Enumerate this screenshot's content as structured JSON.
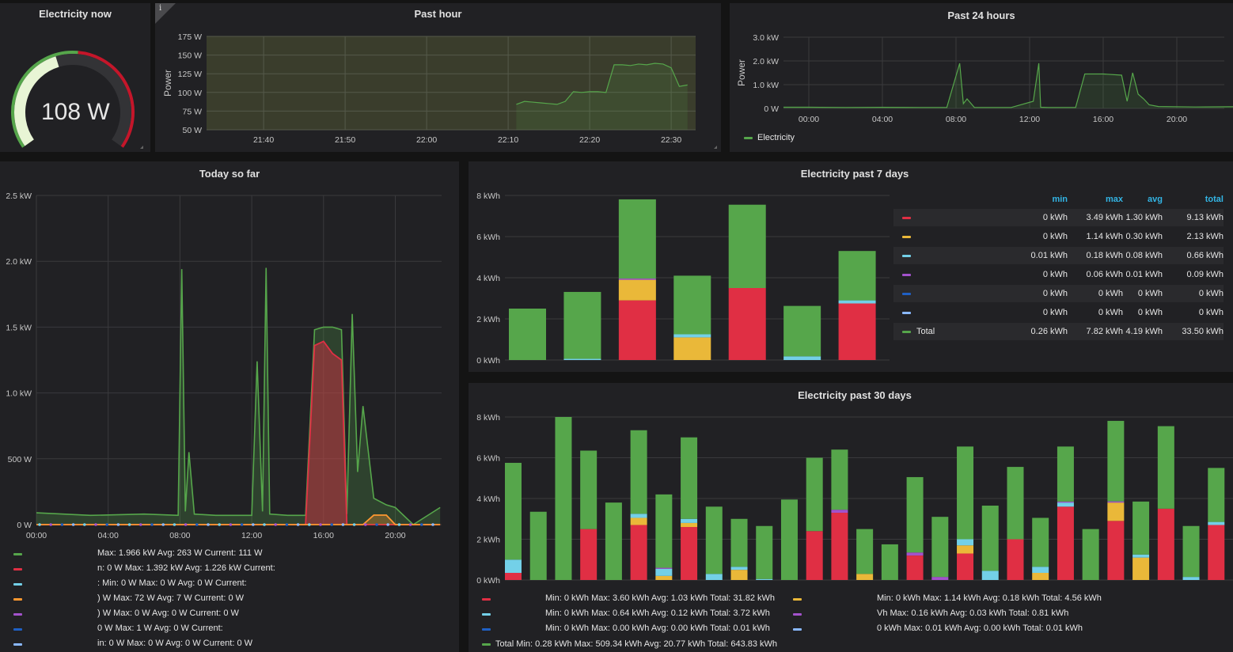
{
  "colors": {
    "green": "#56a64b",
    "red": "#e02f44",
    "cyan": "#73d0e8",
    "orange": "#ff9830",
    "yellow": "#eab839",
    "purple": "#a352cc",
    "blue": "#1f60c4",
    "lightblue": "#8ab8ff",
    "grid": "#3a3a3d",
    "text": "#d8d9da"
  },
  "gauge": {
    "title": "Electricity now",
    "value_text": "108 W",
    "value": 108,
    "max": 250
  },
  "past_hour": {
    "title": "Past hour",
    "info_icon": "i",
    "ylabel": "Power",
    "y_ticks": [
      "175 W",
      "150 W",
      "125 W",
      "100 W",
      "75 W",
      "50 W"
    ],
    "x_ticks": [
      "21:40",
      "21:50",
      "22:00",
      "22:10",
      "22:20",
      "22:30"
    ],
    "chart_data": {
      "type": "line",
      "ylabel": "Power",
      "ylim": [
        50,
        175
      ],
      "unit": "W",
      "x": [
        "22:11",
        "22:12",
        "22:13",
        "22:14",
        "22:15",
        "22:16",
        "22:17",
        "22:18",
        "22:19",
        "22:20",
        "22:21",
        "22:22",
        "22:23",
        "22:24",
        "22:25",
        "22:26",
        "22:27",
        "22:28",
        "22:29",
        "22:30",
        "22:31",
        "22:32"
      ],
      "series": [
        {
          "values": [
            84,
            88,
            87,
            86,
            85,
            84,
            88,
            101,
            100,
            101,
            101,
            100,
            137,
            137,
            136,
            138,
            137,
            139,
            138,
            133,
            108,
            110
          ]
        }
      ]
    }
  },
  "past_24h": {
    "title": "Past 24 hours",
    "ylabel": "Power",
    "y_ticks": [
      "3.0 kW",
      "2.0 kW",
      "1.0 kW",
      "0 W"
    ],
    "x_ticks": [
      "00:00",
      "04:00",
      "08:00",
      "12:00",
      "16:00",
      "20:00"
    ],
    "legend": [
      {
        "label": "Electricity",
        "color": "#56a64b"
      }
    ],
    "chart_data": {
      "type": "line",
      "ylim": [
        0,
        3000
      ],
      "unit": "W",
      "x": [
        0,
        2,
        4,
        6,
        7.5,
        8.2,
        8.4,
        8.6,
        9,
        11,
        12.2,
        12.5,
        12.6,
        13,
        14.5,
        15,
        16,
        17,
        17.3,
        17.6,
        17.9,
        18.2,
        18.5,
        19,
        21,
        23,
        23.5
      ],
      "series": [
        {
          "name": "Electricity",
          "values": [
            50,
            40,
            45,
            40,
            40,
            1900,
            200,
            400,
            40,
            40,
            300,
            1900,
            50,
            40,
            40,
            1450,
            1450,
            1400,
            300,
            1500,
            600,
            400,
            150,
            80,
            60,
            70,
            80
          ]
        }
      ]
    }
  },
  "today": {
    "title": "Today so far",
    "y_ticks": [
      "2.5 kW",
      "2.0 kW",
      "1.5 kW",
      "1.0 kW",
      "500 W",
      "0 W"
    ],
    "x_ticks": [
      "00:00",
      "04:00",
      "08:00",
      "12:00",
      "16:00",
      "20:00"
    ],
    "legend": [
      {
        "color": "#56a64b",
        "text": "Max: 1.966 kW  Avg: 263 W  Current: 111 W"
      },
      {
        "color": "#e02f44",
        "text": "n: 0 W  Max: 1.392 kW  Avg: 1.226 kW  Current:"
      },
      {
        "color": "#73d0e8",
        "text": ": Min: 0 W  Max: 0 W  Avg: 0 W  Current:"
      },
      {
        "color": "#ff9830",
        "text": ") W  Max: 72 W  Avg: 7 W  Current: 0 W"
      },
      {
        "color": "#a352cc",
        "text": ") W  Max: 0 W  Avg: 0 W  Current: 0 W"
      },
      {
        "color": "#1f60c4",
        "text": "0 W  Max: 1 W  Avg: 0 W  Current:"
      },
      {
        "color": "#8ab8ff",
        "text": "in: 0 W  Max: 0 W  Avg: 0 W  Current: 0 W"
      }
    ],
    "chart_data": {
      "type": "area",
      "ylim": [
        0,
        2500
      ],
      "unit": "W",
      "x": [
        0,
        3,
        6,
        7.9,
        8.1,
        8.3,
        8.5,
        8.8,
        10,
        12,
        12.3,
        12.6,
        12.8,
        13,
        14,
        15,
        15.5,
        16,
        16.5,
        17,
        17.3,
        17.6,
        17.9,
        18.2,
        18.8,
        19.5,
        20,
        21,
        22.5
      ],
      "series": [
        {
          "name": "green",
          "values": [
            90,
            70,
            80,
            70,
            1940,
            100,
            550,
            80,
            70,
            70,
            1240,
            100,
            1950,
            80,
            70,
            70,
            1480,
            1500,
            1500,
            1480,
            80,
            1600,
            400,
            900,
            200,
            150,
            130,
            0,
            130
          ]
        },
        {
          "name": "red",
          "values": [
            0,
            0,
            0,
            0,
            0,
            0,
            0,
            0,
            0,
            0,
            0,
            0,
            0,
            0,
            0,
            0,
            1360,
            1392,
            1300,
            1250,
            0,
            0,
            0,
            0,
            0,
            0,
            0,
            0,
            0
          ]
        },
        {
          "name": "orange",
          "values": [
            0,
            0,
            0,
            0,
            0,
            0,
            0,
            0,
            0,
            0,
            0,
            0,
            0,
            0,
            0,
            0,
            0,
            0,
            0,
            0,
            0,
            0,
            0,
            0,
            72,
            72,
            0,
            0,
            0
          ]
        }
      ]
    }
  },
  "past_7d": {
    "title": "Electricity past 7 days",
    "y_ticks": [
      "8 kWh",
      "6 kWh",
      "4 kWh",
      "2 kWh",
      "0 kWh"
    ],
    "table_headers": [
      "min",
      "max",
      "avg",
      "total"
    ],
    "table": [
      {
        "color": "#e02f44",
        "name": "",
        "min": "0 kWh",
        "max": "3.49 kWh",
        "avg": "1.30 kWh",
        "total": "9.13 kWh"
      },
      {
        "color": "#eab839",
        "name": "",
        "min": "0 kWh",
        "max": "1.14 kWh",
        "avg": "0.30 kWh",
        "total": "2.13 kWh"
      },
      {
        "color": "#73d0e8",
        "name": "",
        "min": "0.01 kWh",
        "max": "0.18 kWh",
        "avg": "0.08 kWh",
        "total": "0.66 kWh"
      },
      {
        "color": "#a352cc",
        "name": "",
        "min": "0 kWh",
        "max": "0.06 kWh",
        "avg": "0.01 kWh",
        "total": "0.09 kWh"
      },
      {
        "color": "#1f60c4",
        "name": "",
        "min": "0 kWh",
        "max": "0 kWh",
        "avg": "0 kWh",
        "total": "0 kWh"
      },
      {
        "color": "#8ab8ff",
        "name": "",
        "min": "0 kWh",
        "max": "0 kWh",
        "avg": "0 kWh",
        "total": "0 kWh"
      },
      {
        "color": "#56a64b",
        "name": "Total",
        "min": "0.26 kWh",
        "max": "7.82 kWh",
        "avg": "4.19 kWh",
        "total": "33.50 kWh"
      }
    ],
    "chart_data": {
      "type": "bar",
      "stacked": true,
      "ylim": [
        0,
        8
      ],
      "unit": "kWh",
      "series": [
        {
          "color": "#e02f44",
          "values": [
            0,
            0,
            2.9,
            0,
            3.5,
            0,
            2.75
          ]
        },
        {
          "color": "#eab839",
          "values": [
            0,
            0,
            1.0,
            1.1,
            0,
            0,
            0
          ]
        },
        {
          "color": "#73d0e8",
          "values": [
            0,
            0.06,
            0,
            0.15,
            0,
            0.18,
            0.15
          ]
        },
        {
          "color": "#a352cc",
          "values": [
            0,
            0,
            0.06,
            0,
            0,
            0,
            0
          ]
        },
        {
          "color": "#56a64b",
          "values": [
            2.5,
            3.25,
            3.85,
            2.85,
            4.05,
            2.45,
            2.4
          ]
        }
      ]
    }
  },
  "past_30d": {
    "title": "Electricity past 30 days",
    "y_ticks": [
      "8 kWh",
      "6 kWh",
      "4 kWh",
      "2 kWh",
      "0 kWh"
    ],
    "legend_rows": [
      [
        {
          "color": "#e02f44",
          "text": "Min: 0 kWh  Max: 3.60 kWh  Avg: 1.03 kWh  Total: 31.82 kWh"
        },
        {
          "color": "#eab839",
          "text": "Min: 0 kWh  Max: 1.14 kWh  Avg: 0.18 kWh  Total: 4.56 kWh"
        }
      ],
      [
        {
          "color": "#73d0e8",
          "text": "Min: 0 kWh  Max: 0.64 kWh  Avg: 0.12 kWh  Total: 3.72 kWh"
        },
        {
          "color": "#a352cc",
          "text": "Vh  Max: 0.16 kWh  Avg: 0.03 kWh  Total: 0.81 kWh"
        }
      ],
      [
        {
          "color": "#1f60c4",
          "text": "Min: 0 kWh  Max: 0.00 kWh  Avg: 0.00 kWh  Total: 0.01 kWh"
        },
        {
          "color": "#8ab8ff",
          "text": "0 kWh  Max: 0.01 kWh  Avg: 0.00 kWh  Total: 0.01 kWh"
        }
      ],
      [
        {
          "color": "#56a64b",
          "text": "Total  Min: 0.28 kWh  Max: 509.34 kWh  Avg: 20.77 kWh  Total: 643.83 kWh"
        }
      ]
    ],
    "chart_data": {
      "type": "bar",
      "stacked": true,
      "ylim": [
        0,
        8
      ],
      "unit": "kWh",
      "series": [
        {
          "color": "#e02f44",
          "values": [
            0.35,
            0,
            0,
            2.5,
            0,
            2.7,
            0,
            2.6,
            0,
            0,
            0,
            0,
            2.4,
            3.3,
            0,
            0,
            1.2,
            0,
            1.3,
            0,
            2.0,
            0,
            3.6,
            0,
            2.9,
            0,
            3.5,
            0,
            2.7
          ]
        },
        {
          "color": "#eab839",
          "values": [
            0,
            0,
            0,
            0,
            0,
            0.35,
            0.2,
            0.2,
            0,
            0.5,
            0,
            0,
            0,
            0,
            0.3,
            0,
            0,
            0,
            0.4,
            0,
            0,
            0.35,
            0,
            0,
            0.9,
            1.1,
            0,
            0,
            0
          ]
        },
        {
          "color": "#73d0e8",
          "values": [
            0.65,
            0,
            0,
            0,
            0,
            0.2,
            0.35,
            0.2,
            0.3,
            0.15,
            0.05,
            0,
            0,
            0,
            0,
            0,
            0,
            0,
            0.3,
            0.45,
            0,
            0.3,
            0.2,
            0,
            0,
            0.15,
            0,
            0.15,
            0.15
          ]
        },
        {
          "color": "#a352cc",
          "values": [
            0,
            0,
            0,
            0,
            0,
            0,
            0.05,
            0,
            0,
            0,
            0,
            0,
            0,
            0.15,
            0,
            0,
            0.15,
            0.15,
            0,
            0,
            0,
            0,
            0.05,
            0,
            0.06,
            0,
            0,
            0,
            0
          ]
        },
        {
          "color": "#56a64b",
          "values": [
            4.75,
            3.35,
            8.0,
            3.85,
            3.8,
            4.1,
            3.6,
            4.0,
            3.3,
            2.35,
            2.6,
            3.95,
            3.6,
            2.95,
            2.2,
            1.75,
            3.7,
            2.95,
            4.55,
            3.2,
            3.55,
            2.4,
            2.7,
            2.5,
            3.95,
            2.6,
            4.05,
            2.5,
            2.65
          ]
        }
      ]
    }
  }
}
